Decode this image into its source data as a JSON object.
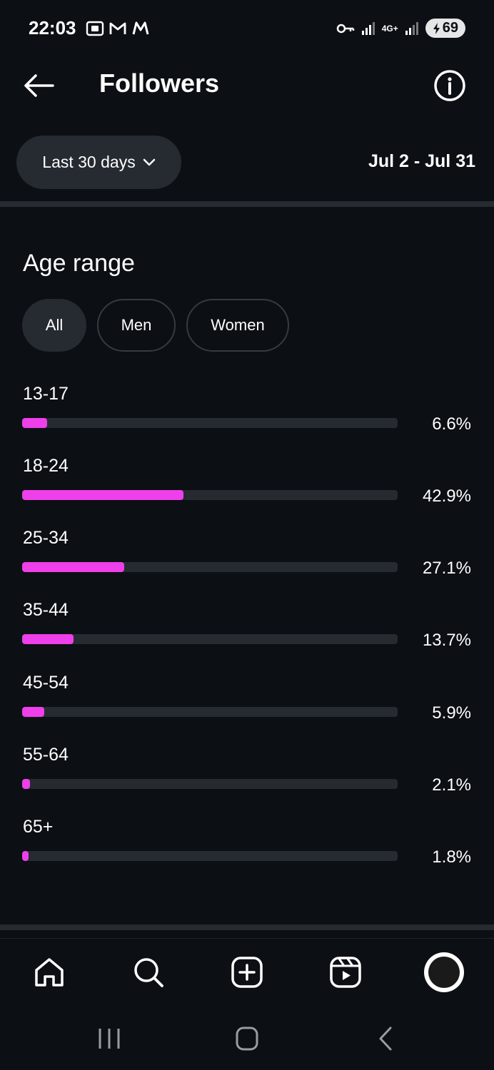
{
  "status_bar": {
    "time": "22:03",
    "network": "4G+",
    "battery": "69"
  },
  "header": {
    "title": "Followers"
  },
  "filter": {
    "range_label": "Last 30 days",
    "date_range": "Jul 2 - Jul 31"
  },
  "section": {
    "title": "Age range"
  },
  "tabs": [
    {
      "label": "All",
      "active": true
    },
    {
      "label": "Men",
      "active": false
    },
    {
      "label": "Women",
      "active": false
    }
  ],
  "colors": {
    "accent": "#ee3fea",
    "background": "#0c0f14",
    "surface": "#262a31"
  },
  "age_ranges": [
    {
      "label": "13-17",
      "percent_text": "6.6%",
      "value": 6.6
    },
    {
      "label": "18-24",
      "percent_text": "42.9%",
      "value": 42.9
    },
    {
      "label": "25-34",
      "percent_text": "27.1%",
      "value": 27.1
    },
    {
      "label": "35-44",
      "percent_text": "13.7%",
      "value": 13.7
    },
    {
      "label": "45-54",
      "percent_text": "5.9%",
      "value": 5.9
    },
    {
      "label": "55-64",
      "percent_text": "2.1%",
      "value": 2.1
    },
    {
      "label": "65+",
      "percent_text": "1.8%",
      "value": 1.8
    }
  ],
  "bottom_nav": [
    {
      "icon": "home-icon"
    },
    {
      "icon": "search-icon"
    },
    {
      "icon": "create-icon"
    },
    {
      "icon": "reels-icon"
    },
    {
      "icon": "profile-avatar"
    }
  ],
  "system_nav": [
    {
      "icon": "recent-apps-icon"
    },
    {
      "icon": "home-circle-icon"
    },
    {
      "icon": "back-chevron-icon"
    }
  ]
}
